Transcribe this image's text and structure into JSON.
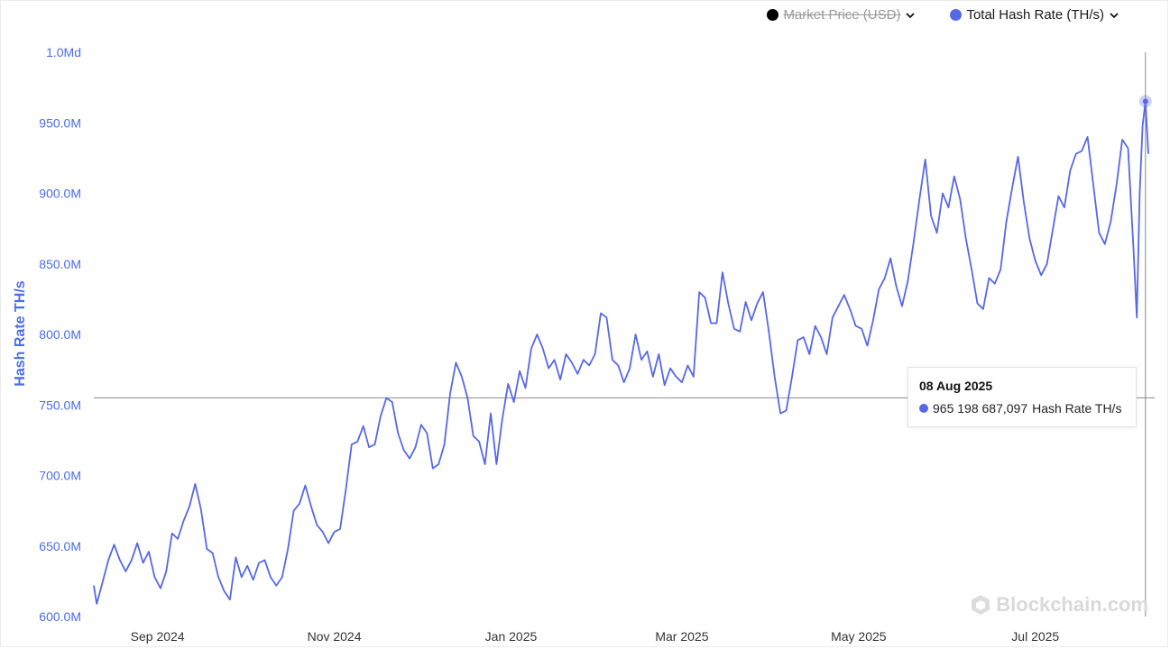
{
  "legend": {
    "market_price_label": "Market Price (USD)",
    "hash_rate_label": "Total Hash Rate (TH/s)",
    "market_price_color": "#000000",
    "hash_rate_color": "#5668e8"
  },
  "tooltip": {
    "date": "08 Aug 2025",
    "value": "965 198 687,097",
    "series": "Hash Rate TH/s"
  },
  "watermark": {
    "text": "Blockchain.com",
    "icon": "blockchain-logo-icon"
  },
  "chart_data": {
    "type": "line",
    "title": "",
    "xlabel": "",
    "ylabel": "Hash Rate TH/s",
    "ylim": [
      600000000,
      1000000000
    ],
    "yticks": [
      {
        "value": 600000000,
        "label": "600.0M"
      },
      {
        "value": 650000000,
        "label": "650.0M"
      },
      {
        "value": 700000000,
        "label": "700.0M"
      },
      {
        "value": 750000000,
        "label": "750.0M"
      },
      {
        "value": 800000000,
        "label": "800.0M"
      },
      {
        "value": 850000000,
        "label": "850.0M"
      },
      {
        "value": 900000000,
        "label": "900.0M"
      },
      {
        "value": 950000000,
        "label": "950.0M"
      },
      {
        "value": 1000000000,
        "label": "1.0Md"
      }
    ],
    "xlim": [
      "2024-08-10",
      "2025-08-09"
    ],
    "xticks": [
      {
        "date": "2024-09-01",
        "label": "Sep 2024"
      },
      {
        "date": "2024-11-01",
        "label": "Nov 2024"
      },
      {
        "date": "2025-01-01",
        "label": "Jan 2025"
      },
      {
        "date": "2025-03-01",
        "label": "Mar 2025"
      },
      {
        "date": "2025-05-01",
        "label": "May 2025"
      },
      {
        "date": "2025-07-01",
        "label": "Jul 2025"
      }
    ],
    "grid": false,
    "crosshair": {
      "date": "2025-08-08",
      "value": 755000000
    },
    "highlight": {
      "date": "2025-08-08",
      "value": 965198687
    },
    "series": [
      {
        "name": "Hash Rate TH/s",
        "color": "#5668e8",
        "points": [
          [
            "2024-08-10",
            622
          ],
          [
            "2024-08-11",
            609
          ],
          [
            "2024-08-13",
            624
          ],
          [
            "2024-08-15",
            640
          ],
          [
            "2024-08-17",
            651
          ],
          [
            "2024-08-19",
            640
          ],
          [
            "2024-08-21",
            632
          ],
          [
            "2024-08-23",
            640
          ],
          [
            "2024-08-25",
            652
          ],
          [
            "2024-08-27",
            638
          ],
          [
            "2024-08-29",
            646
          ],
          [
            "2024-08-31",
            628
          ],
          [
            "2024-09-02",
            620
          ],
          [
            "2024-09-04",
            632
          ],
          [
            "2024-09-06",
            659
          ],
          [
            "2024-09-08",
            655
          ],
          [
            "2024-09-10",
            668
          ],
          [
            "2024-09-12",
            678
          ],
          [
            "2024-09-14",
            694
          ],
          [
            "2024-09-16",
            676
          ],
          [
            "2024-09-18",
            648
          ],
          [
            "2024-09-20",
            645
          ],
          [
            "2024-09-22",
            628
          ],
          [
            "2024-09-24",
            618
          ],
          [
            "2024-09-26",
            612
          ],
          [
            "2024-09-28",
            642
          ],
          [
            "2024-09-30",
            628
          ],
          [
            "2024-10-02",
            636
          ],
          [
            "2024-10-04",
            626
          ],
          [
            "2024-10-06",
            638
          ],
          [
            "2024-10-08",
            640
          ],
          [
            "2024-10-10",
            628
          ],
          [
            "2024-10-12",
            622
          ],
          [
            "2024-10-14",
            628
          ],
          [
            "2024-10-16",
            648
          ],
          [
            "2024-10-18",
            675
          ],
          [
            "2024-10-20",
            680
          ],
          [
            "2024-10-22",
            693
          ],
          [
            "2024-10-24",
            678
          ],
          [
            "2024-10-26",
            665
          ],
          [
            "2024-10-28",
            660
          ],
          [
            "2024-10-30",
            652
          ],
          [
            "2024-11-01",
            660
          ],
          [
            "2024-11-03",
            662
          ],
          [
            "2024-11-05",
            690
          ],
          [
            "2024-11-07",
            722
          ],
          [
            "2024-11-09",
            724
          ],
          [
            "2024-11-11",
            735
          ],
          [
            "2024-11-13",
            720
          ],
          [
            "2024-11-15",
            722
          ],
          [
            "2024-11-17",
            742
          ],
          [
            "2024-11-19",
            755
          ],
          [
            "2024-11-21",
            752
          ],
          [
            "2024-11-23",
            730
          ],
          [
            "2024-11-25",
            718
          ],
          [
            "2024-11-27",
            712
          ],
          [
            "2024-11-29",
            720
          ],
          [
            "2024-12-01",
            736
          ],
          [
            "2024-12-03",
            730
          ],
          [
            "2024-12-05",
            705
          ],
          [
            "2024-12-07",
            708
          ],
          [
            "2024-12-09",
            722
          ],
          [
            "2024-12-11",
            758
          ],
          [
            "2024-12-13",
            780
          ],
          [
            "2024-12-15",
            770
          ],
          [
            "2024-12-17",
            755
          ],
          [
            "2024-12-19",
            728
          ],
          [
            "2024-12-21",
            724
          ],
          [
            "2024-12-23",
            708
          ],
          [
            "2024-12-25",
            744
          ],
          [
            "2024-12-27",
            708
          ],
          [
            "2024-12-29",
            740
          ],
          [
            "2024-12-31",
            765
          ],
          [
            "2025-01-02",
            752
          ],
          [
            "2025-01-04",
            774
          ],
          [
            "2025-01-06",
            762
          ],
          [
            "2025-01-08",
            790
          ],
          [
            "2025-01-10",
            800
          ],
          [
            "2025-01-12",
            790
          ],
          [
            "2025-01-14",
            776
          ],
          [
            "2025-01-16",
            782
          ],
          [
            "2025-01-18",
            768
          ],
          [
            "2025-01-20",
            786
          ],
          [
            "2025-01-22",
            780
          ],
          [
            "2025-01-24",
            772
          ],
          [
            "2025-01-26",
            782
          ],
          [
            "2025-01-28",
            778
          ],
          [
            "2025-01-30",
            786
          ],
          [
            "2025-02-01",
            815
          ],
          [
            "2025-02-03",
            812
          ],
          [
            "2025-02-05",
            782
          ],
          [
            "2025-02-07",
            778
          ],
          [
            "2025-02-09",
            766
          ],
          [
            "2025-02-11",
            776
          ],
          [
            "2025-02-13",
            800
          ],
          [
            "2025-02-15",
            782
          ],
          [
            "2025-02-17",
            788
          ],
          [
            "2025-02-19",
            770
          ],
          [
            "2025-02-21",
            786
          ],
          [
            "2025-02-23",
            764
          ],
          [
            "2025-02-25",
            776
          ],
          [
            "2025-02-27",
            770
          ],
          [
            "2025-03-01",
            766
          ],
          [
            "2025-03-03",
            778
          ],
          [
            "2025-03-05",
            770
          ],
          [
            "2025-03-07",
            830
          ],
          [
            "2025-03-09",
            826
          ],
          [
            "2025-03-11",
            808
          ],
          [
            "2025-03-13",
            808
          ],
          [
            "2025-03-15",
            844
          ],
          [
            "2025-03-17",
            822
          ],
          [
            "2025-03-19",
            804
          ],
          [
            "2025-03-21",
            802
          ],
          [
            "2025-03-23",
            823
          ],
          [
            "2025-03-25",
            810
          ],
          [
            "2025-03-27",
            822
          ],
          [
            "2025-03-29",
            830
          ],
          [
            "2025-03-31",
            802
          ],
          [
            "2025-04-02",
            770
          ],
          [
            "2025-04-04",
            744
          ],
          [
            "2025-04-06",
            746
          ],
          [
            "2025-04-08",
            770
          ],
          [
            "2025-04-10",
            796
          ],
          [
            "2025-04-12",
            798
          ],
          [
            "2025-04-14",
            786
          ],
          [
            "2025-04-16",
            806
          ],
          [
            "2025-04-18",
            798
          ],
          [
            "2025-04-20",
            786
          ],
          [
            "2025-04-22",
            812
          ],
          [
            "2025-04-24",
            820
          ],
          [
            "2025-04-26",
            828
          ],
          [
            "2025-04-28",
            818
          ],
          [
            "2025-04-30",
            806
          ],
          [
            "2025-05-02",
            804
          ],
          [
            "2025-05-04",
            792
          ],
          [
            "2025-05-06",
            810
          ],
          [
            "2025-05-08",
            832
          ],
          [
            "2025-05-10",
            840
          ],
          [
            "2025-05-12",
            854
          ],
          [
            "2025-05-14",
            834
          ],
          [
            "2025-05-16",
            820
          ],
          [
            "2025-05-18",
            838
          ],
          [
            "2025-05-20",
            866
          ],
          [
            "2025-05-22",
            896
          ],
          [
            "2025-05-24",
            924
          ],
          [
            "2025-05-26",
            884
          ],
          [
            "2025-05-28",
            872
          ],
          [
            "2025-05-30",
            900
          ],
          [
            "2025-06-01",
            890
          ],
          [
            "2025-06-03",
            912
          ],
          [
            "2025-06-05",
            896
          ],
          [
            "2025-06-07",
            868
          ],
          [
            "2025-06-09",
            846
          ],
          [
            "2025-06-11",
            822
          ],
          [
            "2025-06-13",
            818
          ],
          [
            "2025-06-15",
            840
          ],
          [
            "2025-06-17",
            836
          ],
          [
            "2025-06-19",
            846
          ],
          [
            "2025-06-21",
            880
          ],
          [
            "2025-06-23",
            904
          ],
          [
            "2025-06-25",
            926
          ],
          [
            "2025-06-27",
            894
          ],
          [
            "2025-06-29",
            868
          ],
          [
            "2025-07-01",
            852
          ],
          [
            "2025-07-03",
            842
          ],
          [
            "2025-07-05",
            850
          ],
          [
            "2025-07-07",
            874
          ],
          [
            "2025-07-09",
            898
          ],
          [
            "2025-07-11",
            890
          ],
          [
            "2025-07-13",
            916
          ],
          [
            "2025-07-15",
            928
          ],
          [
            "2025-07-17",
            930
          ],
          [
            "2025-07-19",
            940
          ],
          [
            "2025-07-21",
            906
          ],
          [
            "2025-07-23",
            872
          ],
          [
            "2025-07-25",
            864
          ],
          [
            "2025-07-27",
            880
          ],
          [
            "2025-07-29",
            906
          ],
          [
            "2025-07-31",
            938
          ],
          [
            "2025-08-02",
            932
          ],
          [
            "2025-08-04",
            856
          ],
          [
            "2025-08-05",
            812
          ],
          [
            "2025-08-06",
            900
          ],
          [
            "2025-08-07",
            948
          ],
          [
            "2025-08-08",
            965
          ],
          [
            "2025-08-09",
            928
          ]
        ]
      }
    ]
  }
}
